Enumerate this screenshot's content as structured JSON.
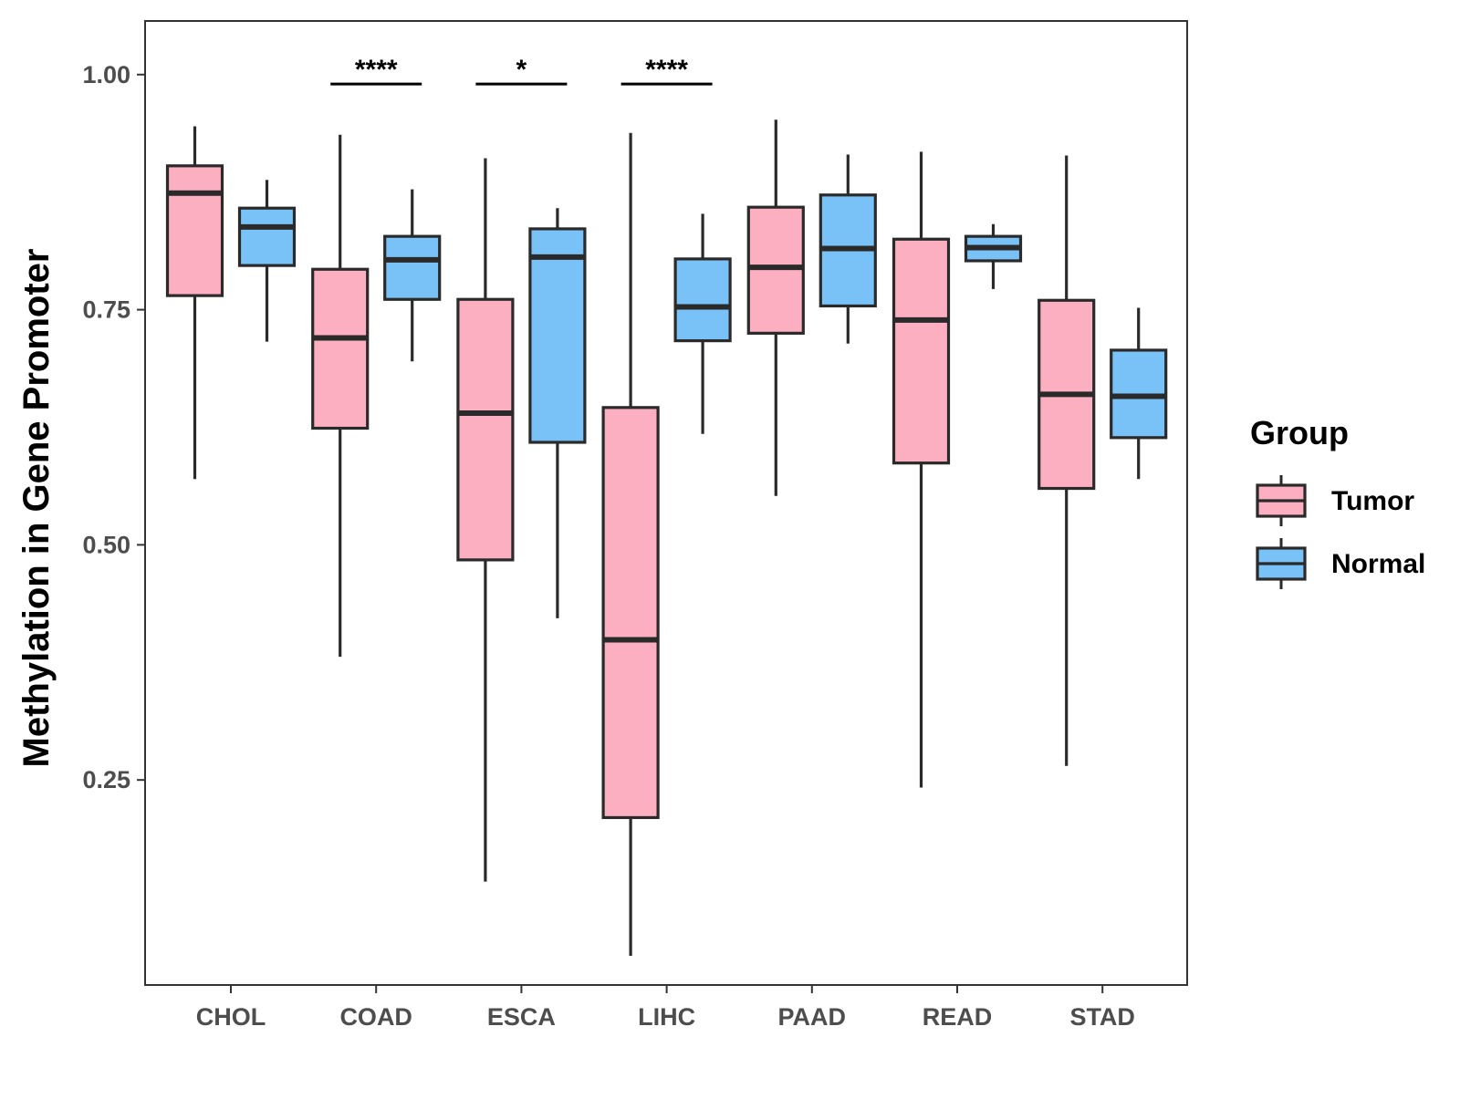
{
  "chart_data": {
    "type": "boxplot",
    "ylabel": "Methylation in Gene Promoter",
    "xlabel": "",
    "ylim": [
      0.032,
      1.057
    ],
    "yticks": [
      0.25,
      0.5,
      0.75,
      1.0
    ],
    "ytick_labels": [
      "0.25",
      "0.50",
      "0.75",
      "1.00"
    ],
    "categories": [
      "CHOL",
      "COAD",
      "ESCA",
      "LIHC",
      "PAAD",
      "READ",
      "STAD"
    ],
    "legend": {
      "title": "Group",
      "position": "right",
      "entries": [
        {
          "label": "Tumor",
          "color": "#FCAFC1"
        },
        {
          "label": "Normal",
          "color": "#79C2F7"
        }
      ]
    },
    "series": [
      {
        "name": "Tumor",
        "color": "#FCAFC1",
        "boxes": [
          {
            "min": 0.57,
            "q1": 0.765,
            "median": 0.874,
            "q3": 0.903,
            "max": 0.945
          },
          {
            "min": 0.381,
            "q1": 0.624,
            "median": 0.72,
            "q3": 0.793,
            "max": 0.936
          },
          {
            "min": 0.142,
            "q1": 0.484,
            "median": 0.64,
            "q3": 0.761,
            "max": 0.911
          },
          {
            "min": 0.063,
            "q1": 0.21,
            "median": 0.399,
            "q3": 0.646,
            "max": 0.938
          },
          {
            "min": 0.552,
            "q1": 0.725,
            "median": 0.795,
            "q3": 0.859,
            "max": 0.952
          },
          {
            "min": 0.242,
            "q1": 0.587,
            "median": 0.739,
            "q3": 0.825,
            "max": 0.918
          },
          {
            "min": 0.265,
            "q1": 0.56,
            "median": 0.66,
            "q3": 0.76,
            "max": 0.914
          }
        ]
      },
      {
        "name": "Normal",
        "color": "#79C2F7",
        "boxes": [
          {
            "min": 0.716,
            "q1": 0.797,
            "median": 0.838,
            "q3": 0.858,
            "max": 0.888
          },
          {
            "min": 0.695,
            "q1": 0.761,
            "median": 0.803,
            "q3": 0.828,
            "max": 0.878
          },
          {
            "min": 0.422,
            "q1": 0.609,
            "median": 0.806,
            "q3": 0.836,
            "max": 0.858
          },
          {
            "min": 0.618,
            "q1": 0.717,
            "median": 0.753,
            "q3": 0.804,
            "max": 0.852
          },
          {
            "min": 0.714,
            "q1": 0.754,
            "median": 0.815,
            "q3": 0.872,
            "max": 0.915
          },
          {
            "min": 0.772,
            "q1": 0.802,
            "median": 0.816,
            "q3": 0.828,
            "max": 0.841
          },
          {
            "min": 0.57,
            "q1": 0.614,
            "median": 0.658,
            "q3": 0.707,
            "max": 0.752
          }
        ]
      }
    ],
    "significance": [
      {
        "category": "COAD",
        "label": "****",
        "y": 0.99
      },
      {
        "category": "ESCA",
        "label": "*",
        "y": 0.99
      },
      {
        "category": "LIHC",
        "label": "****",
        "y": 0.99
      }
    ]
  }
}
